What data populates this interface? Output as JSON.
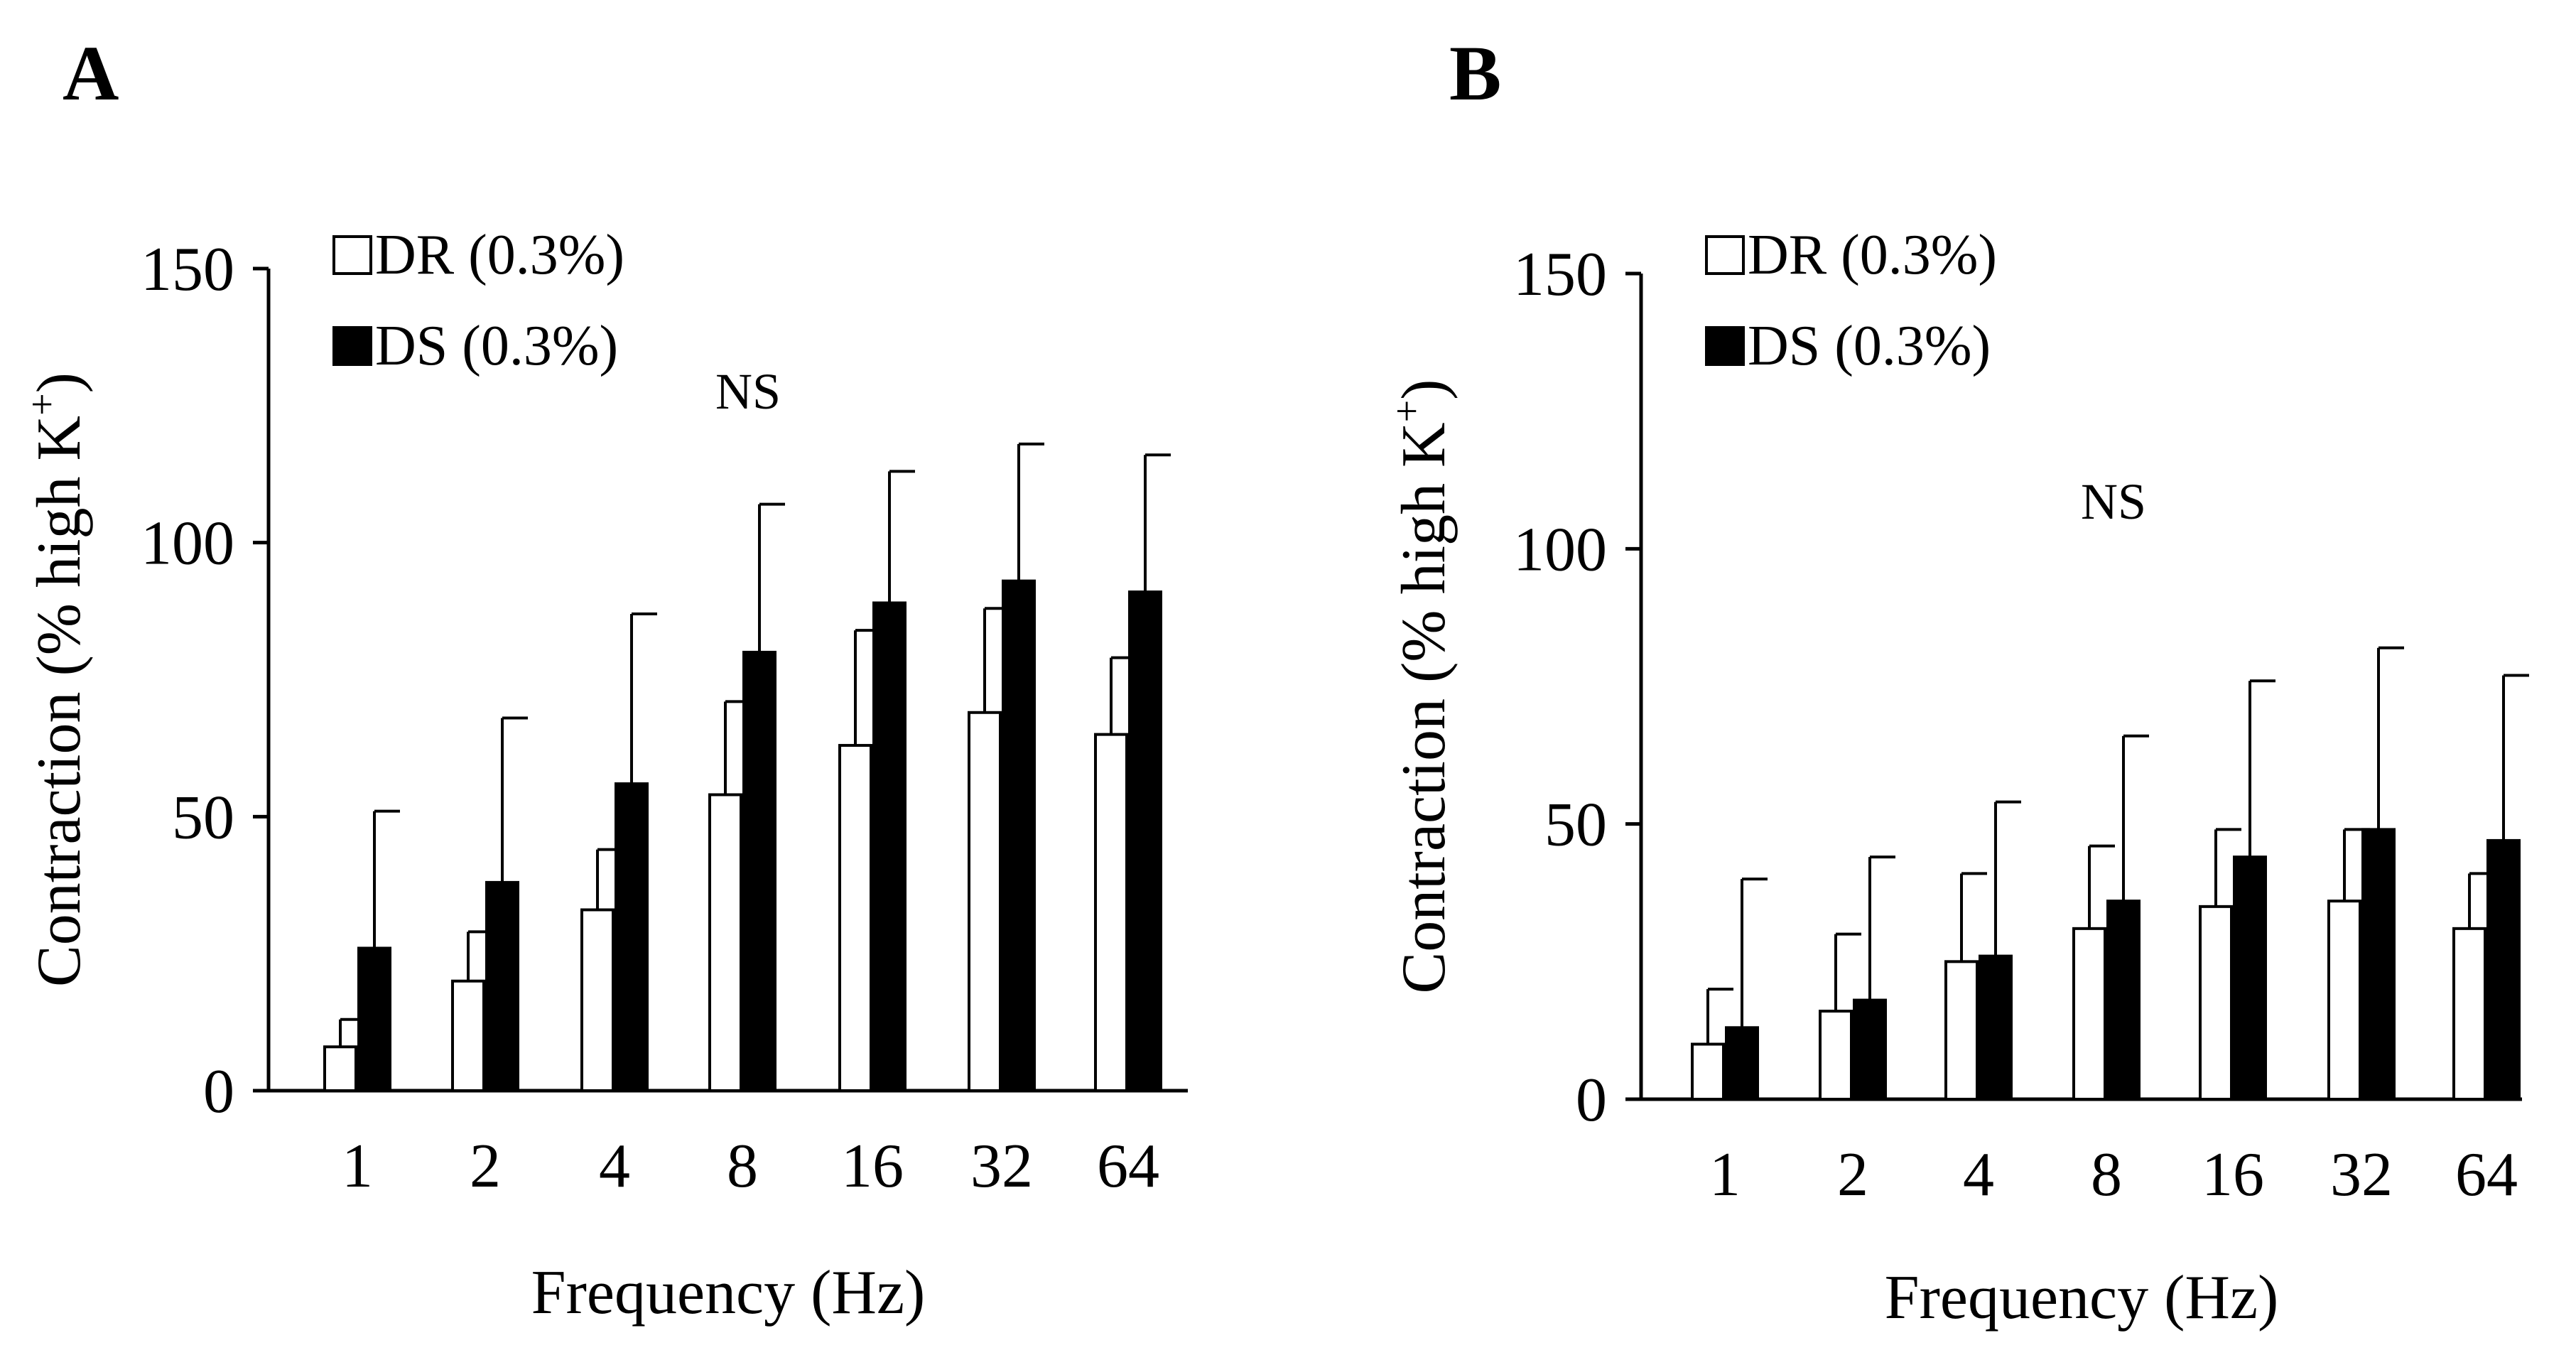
{
  "figure": {
    "colors": {
      "DR": "#ffffff",
      "DS": "#000000",
      "stroke": "#000000"
    }
  },
  "chart_data": [
    {
      "panel": "A",
      "type": "bar",
      "xlabel": "Frequency (Hz)",
      "ylabel": "Contraction (% high K",
      "ylabel_superscript": "+",
      "ylabel_close": ")",
      "categories": [
        "1",
        "2",
        "4",
        "8",
        "16",
        "32",
        "64"
      ],
      "ylim": [
        0,
        150
      ],
      "yticks": [
        0,
        50,
        100,
        150
      ],
      "series": [
        {
          "name": "DR (0.3%)",
          "color": "#ffffff",
          "values": [
            8,
            20,
            33,
            54,
            63,
            69,
            65
          ],
          "errors": [
            5,
            9,
            11,
            17,
            21,
            19,
            14
          ]
        },
        {
          "name": "DS (0.3%)",
          "color": "#000000",
          "values": [
            26,
            38,
            56,
            80,
            89,
            93,
            91
          ],
          "errors": [
            25,
            30,
            31,
            27,
            24,
            25,
            25
          ]
        }
      ],
      "annotation": "NS",
      "legend_position": "top-left"
    },
    {
      "panel": "B",
      "type": "bar",
      "xlabel": "Frequency (Hz)",
      "ylabel": "Contraction (% high K",
      "ylabel_superscript": "+",
      "ylabel_close": ")",
      "categories": [
        "1",
        "2",
        "4",
        "8",
        "16",
        "32",
        "64"
      ],
      "ylim": [
        0,
        150
      ],
      "yticks": [
        0,
        50,
        100,
        150
      ],
      "series": [
        {
          "name": "DR (0.3%)",
          "color": "#ffffff",
          "values": [
            10,
            16,
            25,
            31,
            35,
            36,
            31
          ],
          "errors": [
            10,
            14,
            16,
            15,
            14,
            13,
            10
          ]
        },
        {
          "name": "DS (0.3%)",
          "color": "#000000",
          "values": [
            13,
            18,
            26,
            36,
            44,
            49,
            47
          ],
          "errors": [
            27,
            26,
            28,
            30,
            32,
            33,
            30
          ]
        }
      ],
      "annotation": "NS",
      "legend_position": "top-left"
    }
  ]
}
